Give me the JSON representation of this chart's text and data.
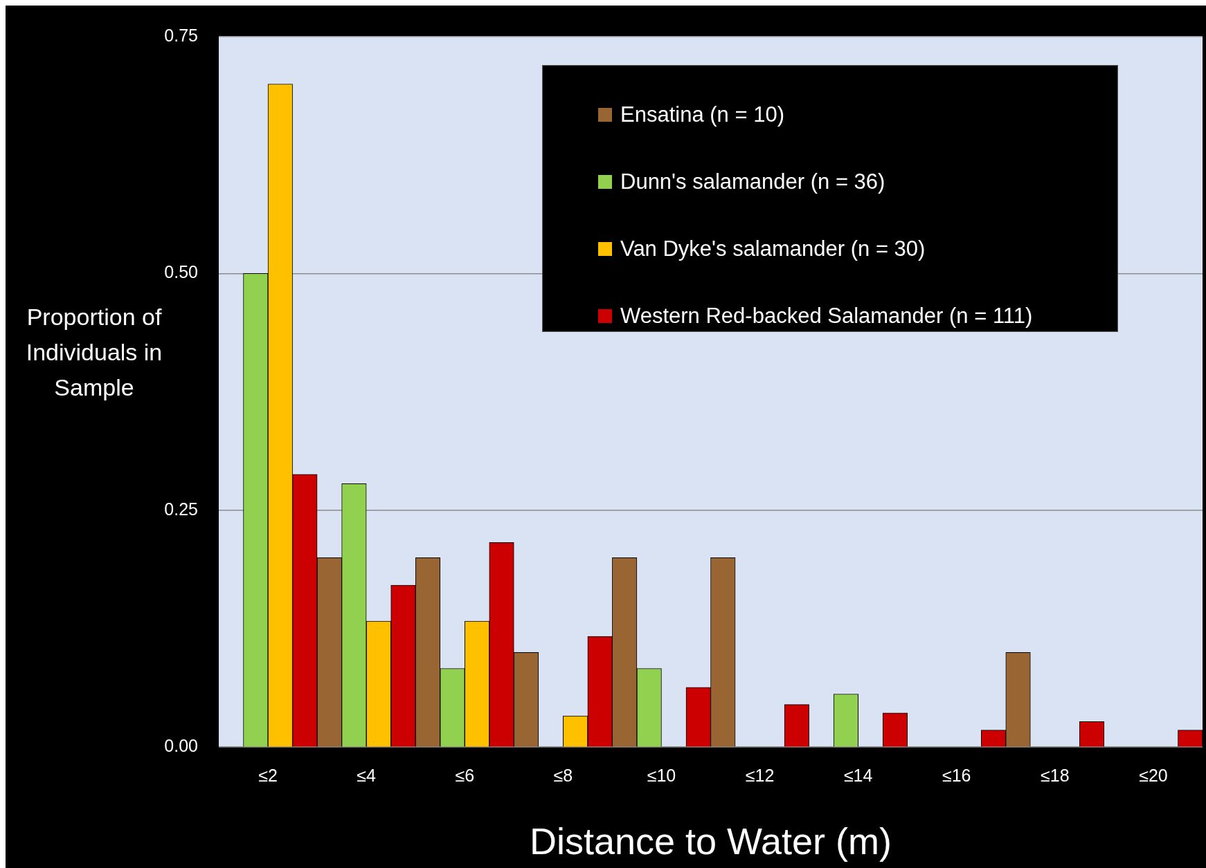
{
  "chart_data": {
    "type": "bar",
    "xlabel": "Distance to Water (m)",
    "ylabel": "Proportion of Individuals in Sample",
    "categories": [
      "≤2",
      "≤4",
      "≤6",
      "≤8",
      "≤10",
      "≤12",
      "≤14",
      "≤16",
      "≤18",
      "≤20"
    ],
    "series": [
      {
        "name": "Ensatina (n = 10)",
        "color": "#996633",
        "values": [
          0,
          0.2,
          0.2,
          0.1,
          0.2,
          0.2,
          0,
          0,
          0.1,
          0
        ]
      },
      {
        "name": "Dunn's salamander (n = 36)",
        "color": "#92d050",
        "values": [
          0.5,
          0.278,
          0.083,
          0,
          0.083,
          0,
          0.056,
          0,
          0,
          0
        ]
      },
      {
        "name": "Van Dyke's salamander (n = 30)",
        "color": "#ffc000",
        "values": [
          0.7,
          0.133,
          0.133,
          0.033,
          0,
          0,
          0,
          0,
          0,
          0
        ]
      },
      {
        "name": "Western Red-backed Salamander (n = 111)",
        "color": "#cc0000",
        "values": [
          0.288,
          0.171,
          0.216,
          0.117,
          0.063,
          0.045,
          0.036,
          0.018,
          0.027,
          0.018
        ]
      }
    ],
    "ylim": [
      0,
      0.75
    ],
    "yticks": [
      {
        "value": 0,
        "label": "0.00"
      },
      {
        "value": 0.25,
        "label": "0.25"
      },
      {
        "value": 0.5,
        "label": "0.50"
      },
      {
        "value": 0.75,
        "label": "0.75"
      }
    ],
    "grid": "y",
    "legend": "top right"
  }
}
